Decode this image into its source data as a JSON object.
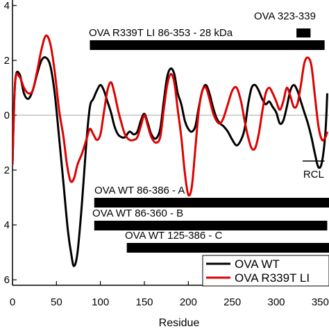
{
  "chart_data": {
    "type": "line",
    "xlabel": "Residue",
    "xlim": [
      0,
      360
    ],
    "ylim": [
      -6.2,
      4.2
    ],
    "x_ticks": [
      0,
      50,
      100,
      150,
      200,
      250,
      300,
      350
    ],
    "y_ticks": [
      {
        "value": 4,
        "label": "4"
      },
      {
        "value": 2,
        "label": "2"
      },
      {
        "value": 0,
        "label": "0"
      },
      {
        "value": -2,
        "label": "2"
      },
      {
        "value": -4,
        "label": "4"
      },
      {
        "value": -6,
        "label": "6"
      }
    ],
    "series": [
      {
        "name": "OVA WT",
        "color": "#000000",
        "x": [
          0,
          3,
          8,
          13,
          18,
          23,
          28,
          33,
          38,
          43,
          48,
          53,
          58,
          63,
          67,
          70,
          74,
          79,
          84,
          88,
          92,
          96,
          100,
          104,
          108,
          112,
          116,
          120,
          124,
          128,
          133,
          138,
          142,
          146,
          150,
          154,
          158,
          163,
          168,
          172,
          176,
          180,
          184,
          188,
          192,
          196,
          200,
          204,
          208,
          212,
          216,
          220,
          224,
          228,
          232,
          236,
          240,
          245,
          250,
          255,
          260,
          264,
          268,
          272,
          276,
          280,
          284,
          288,
          292,
          296,
          300,
          304,
          308,
          312,
          316,
          320,
          324,
          328,
          332,
          336,
          340,
          344,
          348,
          352,
          356,
          358
        ],
        "y": [
          -1.8,
          1.2,
          1.5,
          0.8,
          0.6,
          0.9,
          1.5,
          2.0,
          2.1,
          1.8,
          0.8,
          -0.8,
          -2.5,
          -4.2,
          -5.1,
          -5.5,
          -5.0,
          -3.2,
          -1.0,
          0.3,
          0.6,
          0.9,
          1.1,
          0.9,
          0.5,
          0.1,
          -0.4,
          -0.7,
          -0.8,
          -0.8,
          -0.6,
          -0.7,
          -0.6,
          -0.2,
          0.05,
          -0.3,
          -0.7,
          -0.85,
          -0.5,
          0.5,
          1.4,
          1.7,
          1.5,
          0.8,
          0.4,
          -0.2,
          -0.5,
          -0.6,
          -0.4,
          0.3,
          0.9,
          1.1,
          0.8,
          0.3,
          -0.1,
          -0.3,
          -0.4,
          -0.6,
          -0.9,
          -1.1,
          -0.9,
          -0.5,
          0.4,
          1.0,
          1.1,
          0.9,
          0.6,
          0.4,
          0.5,
          0.3,
          0.1,
          -0.3,
          -0.2,
          0.3,
          0.9,
          1.1,
          0.9,
          0.5,
          0.1,
          -0.3,
          -0.8,
          -1.4,
          -1.9,
          -1.7,
          -0.6,
          0.8
        ]
      },
      {
        "name": "OVA R339T LI",
        "color": "#dd0000",
        "x": [
          0,
          3,
          8,
          13,
          18,
          23,
          28,
          33,
          38,
          43,
          48,
          53,
          58,
          62,
          66,
          70,
          74,
          79,
          84,
          88,
          92,
          96,
          100,
          104,
          108,
          112,
          116,
          120,
          124,
          128,
          133,
          138,
          142,
          146,
          150,
          154,
          158,
          163,
          168,
          172,
          176,
          180,
          184,
          188,
          192,
          196,
          200,
          204,
          208,
          212,
          216,
          220,
          224,
          228,
          232,
          236,
          240,
          245,
          250,
          255,
          260,
          264,
          268,
          272,
          276,
          280,
          284,
          288,
          292,
          296,
          300,
          304,
          308,
          312,
          316,
          320,
          324,
          328,
          332,
          336,
          340,
          344,
          348,
          352,
          356,
          358
        ],
        "y": [
          -1.8,
          1.2,
          1.4,
          1.0,
          0.8,
          0.9,
          1.6,
          2.4,
          2.9,
          2.6,
          1.6,
          0.2,
          -0.8,
          -1.8,
          -2.4,
          -2.3,
          -1.8,
          -1.4,
          -0.9,
          -0.5,
          -0.7,
          -0.9,
          -0.7,
          0.1,
          0.9,
          1.2,
          0.8,
          0.2,
          -0.3,
          -0.7,
          -0.9,
          -0.9,
          -0.8,
          -0.4,
          0.0,
          -0.4,
          -0.8,
          -1.0,
          -0.8,
          0.2,
          1.1,
          1.5,
          1.2,
          0.2,
          -0.8,
          -2.1,
          -2.9,
          -2.6,
          -1.2,
          0.2,
          0.9,
          1.0,
          0.6,
          0.1,
          -0.2,
          -0.3,
          -0.1,
          0.4,
          0.9,
          1.0,
          0.5,
          -0.2,
          -0.8,
          -1.2,
          -1.2,
          -0.7,
          0.1,
          0.8,
          1.0,
          0.8,
          0.5,
          0.2,
          0.5,
          1.0,
          0.7,
          0.3,
          0.4,
          1.1,
          1.9,
          2.1,
          1.8,
          0.7,
          -0.4,
          -0.9,
          -0.8,
          -0.6
        ]
      }
    ],
    "bars": [
      {
        "label": "OVA R339T LI 86-353 - 28 kDa",
        "x_start": 88,
        "x_end": 355
      },
      {
        "label": "OVA 323-339",
        "x_start": 323,
        "x_end": 339
      },
      {
        "label": "OVA WT 86-386 - A",
        "x_start": 93,
        "x_end": 386
      },
      {
        "label": "OVA WT 86-360 - B",
        "x_start": 93,
        "x_end": 358
      },
      {
        "label": "OVA WT 125-386 - C",
        "x_start": 130,
        "x_end": 386
      }
    ],
    "annotation": {
      "label": "RCL",
      "x_start": 330,
      "x_end": 355
    },
    "legend": {
      "placement": "bottom-right"
    }
  }
}
